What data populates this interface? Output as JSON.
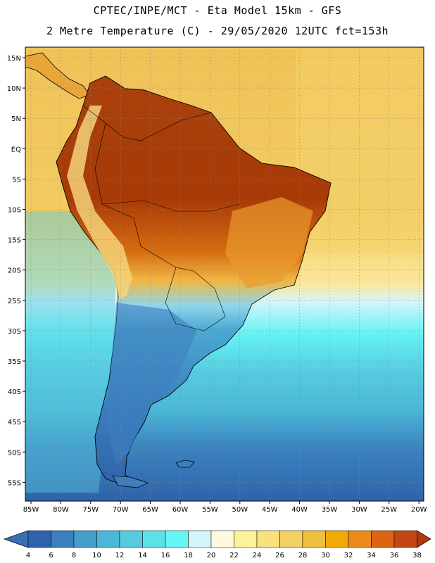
{
  "header": {
    "line1": "CPTEC/INPE/MCT -  Eta Model 15km - GFS",
    "line2": "2 Metre Temperature (C) - 29/05/2020 12UTC fct=153h"
  },
  "map": {
    "region": "South America",
    "lat_labels": [
      "15N",
      "10N",
      "5N",
      "EQ",
      "5S",
      "10S",
      "15S",
      "20S",
      "25S",
      "30S",
      "35S",
      "40S",
      "45S",
      "50S",
      "55S"
    ],
    "lon_labels": [
      "85W",
      "80W",
      "75W",
      "70W",
      "65W",
      "60W",
      "55W",
      "50W",
      "45W",
      "40W",
      "35W",
      "30W",
      "25W",
      "20W"
    ]
  },
  "colorbar": {
    "unit": "C",
    "labels": [
      "4",
      "6",
      "8",
      "10",
      "12",
      "14",
      "16",
      "18",
      "20",
      "22",
      "24",
      "26",
      "28",
      "30",
      "32",
      "34",
      "36",
      "38"
    ],
    "low_color": "#3a6fb3",
    "high_color": "#b5370c",
    "colors": [
      "#2f62ab",
      "#3b7fbd",
      "#44a0c9",
      "#4bb7d6",
      "#56cadf",
      "#5ee0e9",
      "#66f6f6",
      "#d2f6fb",
      "#fef9df",
      "#fdf19c",
      "#f9e27e",
      "#f4cf64",
      "#f0bf40",
      "#f1aa05",
      "#e98a1b",
      "#dd6213",
      "#c24612"
    ]
  },
  "legend_colors": {
    "land_hot": "#a83a08",
    "land_warm": "#d66d12",
    "ocean_tropical": "#f3cf63",
    "ocean_cold": "#2f62ab"
  }
}
